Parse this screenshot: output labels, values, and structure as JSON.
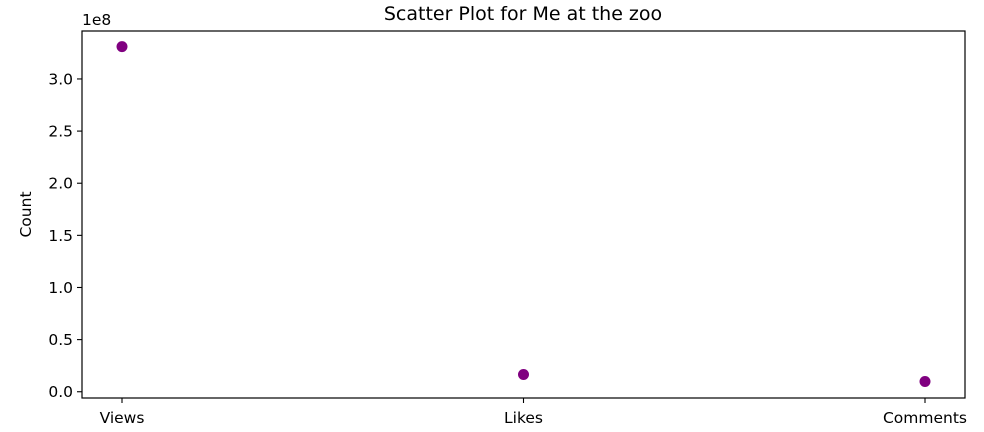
{
  "chart_data": {
    "type": "scatter",
    "title": "Scatter Plot for Me at the zoo",
    "xlabel": "",
    "ylabel": "Count",
    "categories": [
      "Views",
      "Likes",
      "Comments"
    ],
    "values": [
      331000000,
      16500000,
      9800000
    ],
    "ylim": [
      -6000000,
      346000000
    ],
    "yticks": [
      0,
      50000000,
      100000000,
      150000000,
      200000000,
      250000000,
      300000000
    ],
    "ytick_labels": [
      "0.0",
      "0.5",
      "1.0",
      "1.5",
      "2.0",
      "2.5",
      "3.0"
    ],
    "y_offset_label": "1e8",
    "marker_color": "#800080",
    "grid": false,
    "legend": "none"
  }
}
